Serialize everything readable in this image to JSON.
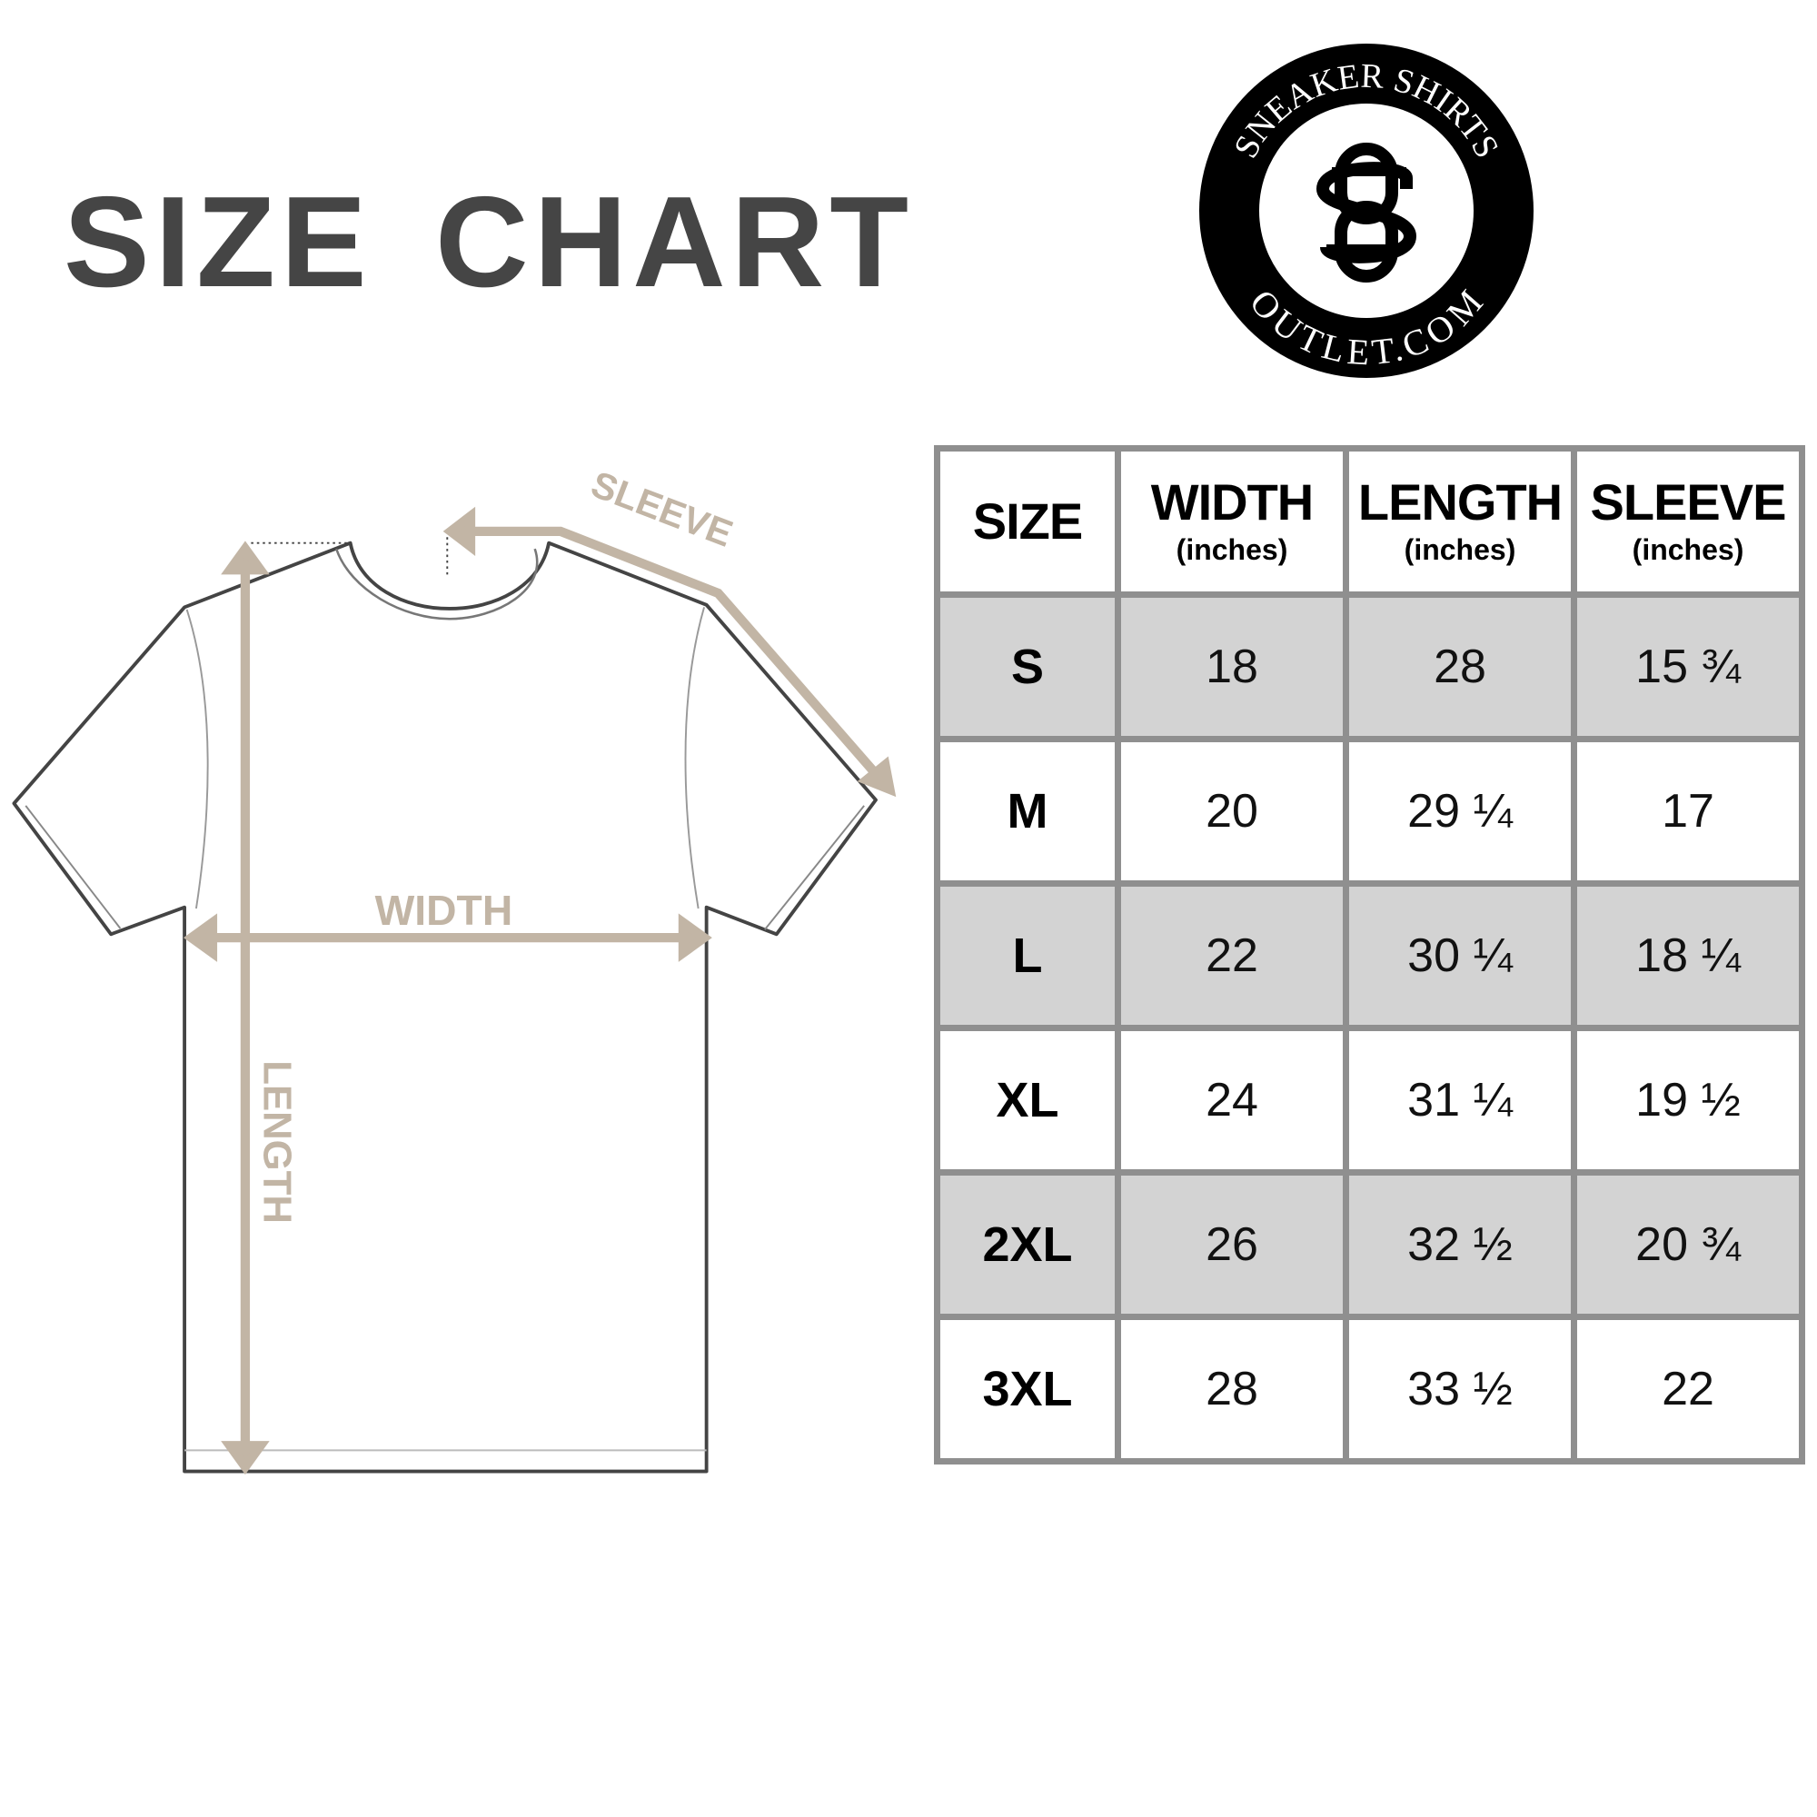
{
  "title": "SIZE CHART",
  "logo": {
    "top_text": "SNEAKER SHIRTS",
    "bottom_text": "OUTLET.COM",
    "monogram": "SO"
  },
  "diagram": {
    "width_label": "WIDTH",
    "length_label": "LENGTH",
    "sleeve_label": "SLEEVE"
  },
  "colors": {
    "measure": "#c2b5a5",
    "outline": "#444444",
    "shaded_row": "#d3d3d3",
    "grid": "#8f8f8f",
    "title": "#454545"
  },
  "table": {
    "headers": [
      {
        "label": "SIZE",
        "unit": ""
      },
      {
        "label": "WIDTH",
        "unit": "(inches)"
      },
      {
        "label": "LENGTH",
        "unit": "(inches)"
      },
      {
        "label": "SLEEVE",
        "unit": "(inches)"
      }
    ],
    "rows": [
      {
        "size": "S",
        "width": "18",
        "length": "28",
        "sleeve": "15 ¾"
      },
      {
        "size": "M",
        "width": "20",
        "length": "29 ¼",
        "sleeve": "17"
      },
      {
        "size": "L",
        "width": "22",
        "length": "30 ¼",
        "sleeve": "18 ¼"
      },
      {
        "size": "XL",
        "width": "24",
        "length": "31 ¼",
        "sleeve": "19 ½"
      },
      {
        "size": "2XL",
        "width": "26",
        "length": "32 ½",
        "sleeve": "20 ¾"
      },
      {
        "size": "3XL",
        "width": "28",
        "length": "33 ½",
        "sleeve": "22"
      }
    ]
  }
}
